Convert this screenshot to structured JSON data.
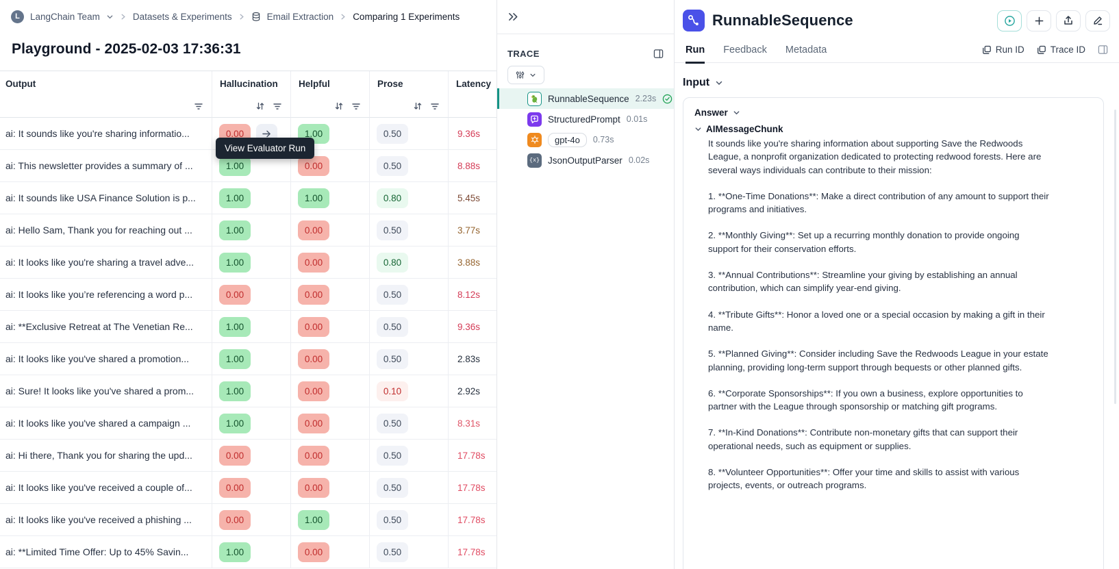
{
  "breadcrumb": {
    "team_initial": "L",
    "team": "LangChain Team",
    "items": [
      "Datasets & Experiments",
      "Email Extraction",
      "Comparing 1 Experiments"
    ]
  },
  "page_title": "Playground - 2025-02-03 17:36:31",
  "tooltip": "View Evaluator Run",
  "table": {
    "columns": [
      {
        "label": "Output",
        "icons": [
          "filter"
        ]
      },
      {
        "label": "Hallucination",
        "icons": [
          "sort",
          "filter"
        ]
      },
      {
        "label": "Helpful",
        "icons": [
          "sort",
          "filter"
        ]
      },
      {
        "label": "Prose",
        "icons": [
          "sort",
          "filter"
        ]
      },
      {
        "label": "Latency",
        "icons": []
      }
    ],
    "rows": [
      {
        "output": "ai: It sounds like you're sharing informatio...",
        "hallucination": {
          "v": "0.00",
          "c": "red",
          "arrow": true
        },
        "helpful": {
          "v": "1.00",
          "c": "green"
        },
        "prose": {
          "v": "0.50",
          "c": "gray"
        },
        "latency": {
          "v": "9.36s",
          "color": "#d43b56"
        }
      },
      {
        "output": "ai: This newsletter provides a summary of ...",
        "hallucination": {
          "v": "1.00",
          "c": "green"
        },
        "helpful": {
          "v": "0.00",
          "c": "red"
        },
        "prose": {
          "v": "0.50",
          "c": "gray"
        },
        "latency": {
          "v": "8.88s",
          "color": "#d43b56"
        }
      },
      {
        "output": "ai: It sounds like USA Finance Solution is p...",
        "hallucination": {
          "v": "1.00",
          "c": "green"
        },
        "helpful": {
          "v": "1.00",
          "c": "green"
        },
        "prose": {
          "v": "0.80",
          "c": "lightgreen"
        },
        "latency": {
          "v": "5.45s",
          "color": "#7d4a36"
        }
      },
      {
        "output": "ai: Hello Sam, Thank you for reaching out ...",
        "hallucination": {
          "v": "1.00",
          "c": "green"
        },
        "helpful": {
          "v": "0.00",
          "c": "red"
        },
        "prose": {
          "v": "0.50",
          "c": "gray"
        },
        "latency": {
          "v": "3.77s",
          "color": "#95642f"
        }
      },
      {
        "output": "ai: It looks like you're sharing a travel adve...",
        "hallucination": {
          "v": "1.00",
          "c": "green"
        },
        "helpful": {
          "v": "0.00",
          "c": "red"
        },
        "prose": {
          "v": "0.80",
          "c": "lightgreen"
        },
        "latency": {
          "v": "3.88s",
          "color": "#95642f"
        }
      },
      {
        "output": "ai: It looks like you’re referencing a word p...",
        "hallucination": {
          "v": "0.00",
          "c": "red"
        },
        "helpful": {
          "v": "0.00",
          "c": "red"
        },
        "prose": {
          "v": "0.50",
          "c": "gray"
        },
        "latency": {
          "v": "8.12s",
          "color": "#d43b56"
        }
      },
      {
        "output": "ai: **Exclusive Retreat at The Venetian Re...",
        "hallucination": {
          "v": "1.00",
          "c": "green"
        },
        "helpful": {
          "v": "0.00",
          "c": "red"
        },
        "prose": {
          "v": "0.50",
          "c": "gray"
        },
        "latency": {
          "v": "9.36s",
          "color": "#d43b56"
        }
      },
      {
        "output": "ai: It looks like you've shared a promotion...",
        "hallucination": {
          "v": "1.00",
          "c": "green"
        },
        "helpful": {
          "v": "0.00",
          "c": "red"
        },
        "prose": {
          "v": "0.50",
          "c": "gray"
        },
        "latency": {
          "v": "2.83s",
          "color": "#26303e"
        }
      },
      {
        "output": "ai: Sure! It looks like you've shared a prom...",
        "hallucination": {
          "v": "1.00",
          "c": "green"
        },
        "helpful": {
          "v": "0.00",
          "c": "red"
        },
        "prose": {
          "v": "0.10",
          "c": "lightpink"
        },
        "latency": {
          "v": "2.92s",
          "color": "#26303e"
        }
      },
      {
        "output": "ai: It looks like you've shared a campaign ...",
        "hallucination": {
          "v": "1.00",
          "c": "green"
        },
        "helpful": {
          "v": "0.00",
          "c": "red"
        },
        "prose": {
          "v": "0.50",
          "c": "gray"
        },
        "latency": {
          "v": "8.31s",
          "color": "#df5568"
        }
      },
      {
        "output": "ai: Hi there, Thank you for sharing the upd...",
        "hallucination": {
          "v": "0.00",
          "c": "red"
        },
        "helpful": {
          "v": "0.00",
          "c": "red"
        },
        "prose": {
          "v": "0.50",
          "c": "gray"
        },
        "latency": {
          "v": "17.78s",
          "color": "#e04a61"
        }
      },
      {
        "output": "ai: It looks like you've received a couple of...",
        "hallucination": {
          "v": "0.00",
          "c": "red"
        },
        "helpful": {
          "v": "0.00",
          "c": "red"
        },
        "prose": {
          "v": "0.50",
          "c": "gray"
        },
        "latency": {
          "v": "17.78s",
          "color": "#e04a61"
        }
      },
      {
        "output": "ai: It looks like you've received a phishing ...",
        "hallucination": {
          "v": "0.00",
          "c": "red"
        },
        "helpful": {
          "v": "1.00",
          "c": "green"
        },
        "prose": {
          "v": "0.50",
          "c": "gray"
        },
        "latency": {
          "v": "17.78s",
          "color": "#e04a61"
        }
      },
      {
        "output": "ai: **Limited Time Offer: Up to 45% Savin...",
        "hallucination": {
          "v": "1.00",
          "c": "green"
        },
        "helpful": {
          "v": "0.00",
          "c": "red"
        },
        "prose": {
          "v": "0.50",
          "c": "gray"
        },
        "latency": {
          "v": "17.78s",
          "color": "#e04a61"
        }
      }
    ]
  },
  "trace": {
    "label": "TRACE",
    "items": [
      {
        "icon": "parrot",
        "name": "RunnableSequence",
        "duration": "2.23s",
        "selected": true,
        "check": true
      },
      {
        "icon": "prompt",
        "name": "StructuredPrompt",
        "duration": "0.01s"
      },
      {
        "icon": "openai",
        "pill": "gpt-4o",
        "duration": "0.73s"
      },
      {
        "icon": "json",
        "name": "JsonOutputParser",
        "duration": "0.02s"
      }
    ]
  },
  "detail": {
    "title": "RunnableSequence",
    "tabs": [
      "Run",
      "Feedback",
      "Metadata"
    ],
    "active_tab": "Run",
    "run_id_label": "Run ID",
    "trace_id_label": "Trace ID",
    "section": "Input",
    "answer_label": "Answer",
    "chunk_label": "AIMessageChunk",
    "paragraphs": [
      "It sounds like you're sharing information about supporting Save the Redwoods League, a nonprofit organization dedicated to protecting redwood forests. Here are several ways individuals can contribute to their mission:",
      "1. **One-Time Donations**: Make a direct contribution of any amount to support their programs and initiatives.",
      "2. **Monthly Giving**: Set up a recurring monthly donation to provide ongoing support for their conservation efforts.",
      "3. **Annual Contributions**: Streamline your giving by establishing an annual contribution, which can simplify year-end giving.",
      "4. **Tribute Gifts**: Honor a loved one or a special occasion by making a gift in their name.",
      "5. **Planned Giving**: Consider including Save the Redwoods League in your estate planning, providing long-term support through bequests or other planned gifts.",
      "6. **Corporate Sponsorships**: If you own a business, explore opportunities to partner with the League through sponsorship or matching gift programs.",
      "7. **In-Kind Donations**: Contribute non-monetary gifts that can support their operational needs, such as equipment or supplies.",
      "8. **Volunteer Opportunities**: Offer your time and skills to assist with various projects, events, or outreach programs."
    ],
    "colors": {
      "accent_blue": "#4a51e8",
      "teal": "#159385",
      "check_green": "#22a356"
    }
  }
}
